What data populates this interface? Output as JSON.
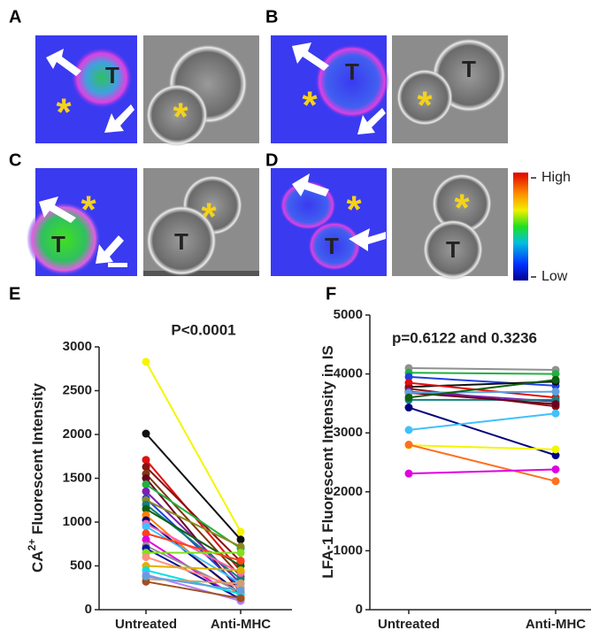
{
  "panels": [
    {
      "label": "A",
      "texts": [
        "T",
        "*",
        "*"
      ]
    },
    {
      "label": "B",
      "texts": [
        "T",
        "*",
        "T",
        "*"
      ]
    },
    {
      "label": "C",
      "texts": [
        "*",
        "T",
        "*",
        "T"
      ]
    },
    {
      "label": "D",
      "texts": [
        "*",
        "T",
        "*",
        "T"
      ]
    }
  ],
  "colorbar": {
    "high": "High",
    "low": "Low"
  },
  "chart_data": [
    {
      "type": "line",
      "panel": "E",
      "annotation": "P<0.0001",
      "ylabel_parts": [
        "CA",
        "2+",
        " Fluorescent Intensity"
      ],
      "categories": [
        "Untreated",
        "Anti-MHC"
      ],
      "ylim": [
        0,
        3000
      ],
      "yticks": [
        0,
        500,
        1000,
        1500,
        2000,
        2500,
        3000
      ],
      "series": [
        {
          "color": "#f5f500",
          "values": [
            2830,
            890
          ]
        },
        {
          "color": "#111111",
          "values": [
            2010,
            800
          ]
        },
        {
          "color": "#e01010",
          "values": [
            1710,
            440
          ]
        },
        {
          "color": "#8b1010",
          "values": [
            1630,
            550
          ]
        },
        {
          "color": "#7a3a10",
          "values": [
            1550,
            380
          ]
        },
        {
          "color": "#6b0020",
          "values": [
            1500,
            200
          ]
        },
        {
          "color": "#20b040",
          "values": [
            1430,
            700
          ]
        },
        {
          "color": "#7a20b0",
          "values": [
            1350,
            300
          ]
        },
        {
          "color": "#2040e0",
          "values": [
            1270,
            250
          ]
        },
        {
          "color": "#8a8a20",
          "values": [
            1250,
            720
          ]
        },
        {
          "color": "#108080",
          "values": [
            1200,
            350
          ]
        },
        {
          "color": "#106010",
          "values": [
            1150,
            500
          ]
        },
        {
          "color": "#ff8000",
          "values": [
            1080,
            150
          ]
        },
        {
          "color": "#000080",
          "values": [
            1020,
            180
          ]
        },
        {
          "color": "#ff60b0",
          "values": [
            980,
            420
          ]
        },
        {
          "color": "#40c0ff",
          "values": [
            950,
            300
          ]
        },
        {
          "color": "#ff4020",
          "values": [
            870,
            560
          ]
        },
        {
          "color": "#e000e0",
          "values": [
            800,
            110
          ]
        },
        {
          "color": "#909090",
          "values": [
            730,
            200
          ]
        },
        {
          "color": "#1010a0",
          "values": [
            700,
            120
          ]
        },
        {
          "color": "#80e020",
          "values": [
            650,
            650
          ]
        },
        {
          "color": "#ff9080",
          "values": [
            600,
            250
          ]
        },
        {
          "color": "#e0b000",
          "values": [
            500,
            450
          ]
        },
        {
          "color": "#00e0e0",
          "values": [
            450,
            180
          ]
        },
        {
          "color": "#b080ff",
          "values": [
            400,
            100
          ]
        },
        {
          "color": "#d0a070",
          "values": [
            350,
            300
          ]
        },
        {
          "color": "#a05020",
          "values": [
            320,
            130
          ]
        },
        {
          "color": "#60a0e0",
          "values": [
            380,
            220
          ]
        }
      ]
    },
    {
      "type": "line",
      "panel": "F",
      "annotation": "p=0.6122 and 0.3236",
      "ylabel_parts": [
        "LFA-1 Fluorescent Intensity in IS"
      ],
      "categories": [
        "Untreated",
        "Anti-MHC"
      ],
      "ylim": [
        0,
        5000
      ],
      "yticks": [
        0,
        1000,
        2000,
        3000,
        4000,
        5000
      ],
      "series": [
        {
          "color": "#909090",
          "values": [
            4100,
            4070
          ]
        },
        {
          "color": "#20b040",
          "values": [
            4020,
            4000
          ]
        },
        {
          "color": "#2040e0",
          "values": [
            3950,
            3800
          ]
        },
        {
          "color": "#111111",
          "values": [
            3780,
            3870
          ]
        },
        {
          "color": "#e01010",
          "values": [
            3850,
            3600
          ]
        },
        {
          "color": "#8b1010",
          "values": [
            3750,
            3450
          ]
        },
        {
          "color": "#7a20b0",
          "values": [
            3700,
            3530
          ]
        },
        {
          "color": "#108080",
          "values": [
            3560,
            3560
          ]
        },
        {
          "color": "#6b0020",
          "values": [
            3680,
            3490
          ]
        },
        {
          "color": "#000080",
          "values": [
            3430,
            2620
          ]
        },
        {
          "color": "#40c0ff",
          "values": [
            3050,
            3330
          ]
        },
        {
          "color": "#f5f500",
          "values": [
            2790,
            2720
          ]
        },
        {
          "color": "#ff7020",
          "values": [
            2800,
            2180
          ]
        },
        {
          "color": "#e000e0",
          "values": [
            2310,
            2380
          ]
        },
        {
          "color": "#60a0e0",
          "values": [
            3680,
            3700
          ]
        },
        {
          "color": "#106010",
          "values": [
            3600,
            3900
          ]
        }
      ]
    }
  ]
}
